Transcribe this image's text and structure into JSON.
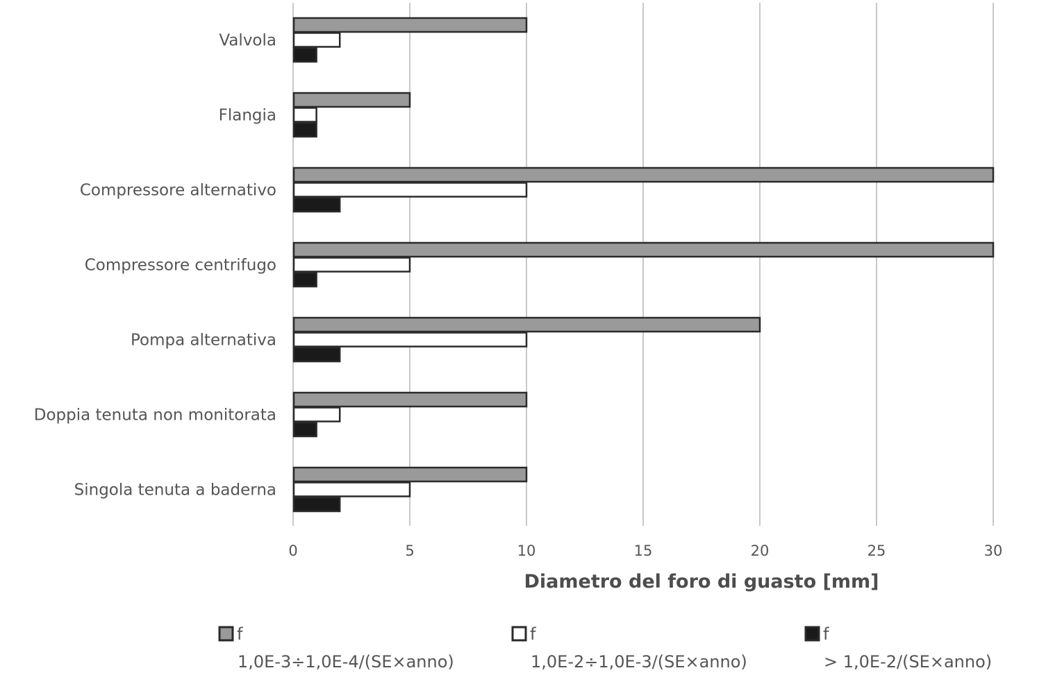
{
  "chart_data": {
    "type": "bar",
    "orientation": "horizontal",
    "categories": [
      "Valvola",
      "Flangia",
      "Compressore alternativo",
      "Compressore centrifugo",
      "Pompa alternativa",
      "Doppia tenuta non monitorata",
      "Singola tenuta a baderna"
    ],
    "series": [
      {
        "name": "f",
        "subtitle": "1,0E-3÷1,0E-4/(SE×anno)",
        "color": "#9a9a9a",
        "values": [
          10,
          5,
          30,
          30,
          20,
          10,
          10
        ]
      },
      {
        "name": "f",
        "subtitle": "1,0E-2÷1,0E-3/(SE×anno)",
        "color": "#ffffff",
        "values": [
          2,
          1,
          10,
          5,
          10,
          2,
          5
        ]
      },
      {
        "name": "f",
        "subtitle": "> 1,0E-2/(SE×anno)",
        "color": "#1a1a1a",
        "values": [
          1,
          1,
          2,
          1,
          2,
          1,
          2
        ]
      }
    ],
    "xlabel": "Diametro del foro di guasto [mm]",
    "ylabel": "",
    "xlim": [
      0,
      30
    ],
    "xticks": [
      "0",
      "5",
      "10",
      "15",
      "20",
      "25",
      "30"
    ],
    "grid": "vertical",
    "legend_position": "bottom",
    "bar_stroke_color": "#2a2a2a",
    "grid_color": "#c8c8c8"
  }
}
